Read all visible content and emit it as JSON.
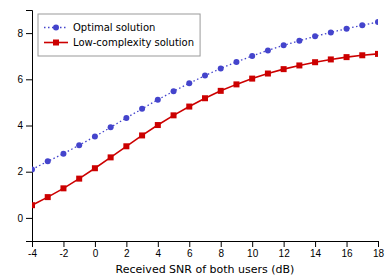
{
  "chart_data": {
    "type": "line",
    "xlabel": "Received SNR of both users (dB)",
    "x": [
      -4,
      -3,
      -2,
      -1,
      0,
      1,
      2,
      3,
      4,
      5,
      6,
      7,
      8,
      9,
      10,
      11,
      12,
      13,
      14,
      15,
      16,
      17,
      18
    ],
    "series": [
      {
        "name": "Optimal solution",
        "color": "#4444cc",
        "marker": "circle",
        "line_style": "dotted",
        "values": [
          2.1,
          2.45,
          2.78,
          3.15,
          3.52,
          3.92,
          4.33,
          4.72,
          5.12,
          5.48,
          5.83,
          6.16,
          6.47,
          6.75,
          7.01,
          7.25,
          7.47,
          7.67,
          7.86,
          8.03,
          8.19,
          8.34,
          8.48
        ]
      },
      {
        "name": "Low-complexity solution",
        "color": "#cc0000",
        "marker": "square",
        "line_style": "solid",
        "values": [
          0.55,
          0.9,
          1.28,
          1.7,
          2.15,
          2.62,
          3.1,
          3.57,
          4.02,
          4.44,
          4.82,
          5.18,
          5.5,
          5.78,
          6.03,
          6.25,
          6.44,
          6.6,
          6.74,
          6.86,
          6.96,
          7.04,
          7.1
        ]
      }
    ],
    "xlim": [
      -4,
      18
    ],
    "xticks": [
      -4,
      -2,
      0,
      2,
      4,
      6,
      8,
      10,
      12,
      14,
      16,
      18
    ],
    "ylim": [
      -1,
      9
    ],
    "yticks": [
      0,
      2,
      4,
      6,
      8
    ],
    "grid": false,
    "legend": "upper left"
  }
}
